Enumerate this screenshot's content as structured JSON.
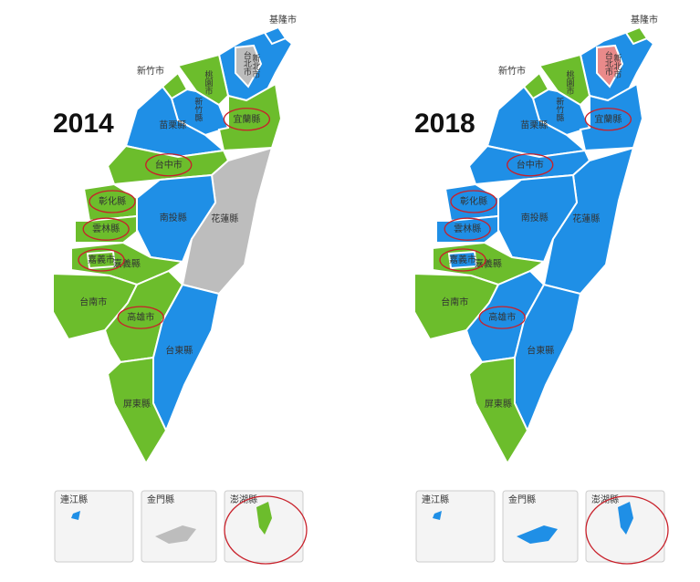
{
  "maps": [
    {
      "year": "2014",
      "counties": [
        {
          "name": "新北市",
          "color": "#1f8fe6",
          "circled": false
        },
        {
          "name": "台北市",
          "color": "#bdbdbd",
          "circled": false
        },
        {
          "name": "基隆市",
          "color": "#1f8fe6",
          "circled": false
        },
        {
          "name": "桃園市",
          "color": "#6cbd2c",
          "circled": false
        },
        {
          "name": "新竹市",
          "color": "#6cbd2c",
          "circled": false
        },
        {
          "name": "新竹縣",
          "color": "#1f8fe6",
          "circled": false
        },
        {
          "name": "宜蘭縣",
          "color": "#6cbd2c",
          "circled": true
        },
        {
          "name": "苗栗縣",
          "color": "#1f8fe6",
          "circled": false
        },
        {
          "name": "台中市",
          "color": "#6cbd2c",
          "circled": true
        },
        {
          "name": "花蓮縣",
          "color": "#bdbdbd",
          "circled": false
        },
        {
          "name": "南投縣",
          "color": "#1f8fe6",
          "circled": false
        },
        {
          "name": "彰化縣",
          "color": "#6cbd2c",
          "circled": true
        },
        {
          "name": "雲林縣",
          "color": "#6cbd2c",
          "circled": true
        },
        {
          "name": "嘉義縣",
          "color": "#6cbd2c",
          "circled": false
        },
        {
          "name": "嘉義市",
          "color": "#6cbd2c",
          "circled": true
        },
        {
          "name": "台南市",
          "color": "#6cbd2c",
          "circled": false
        },
        {
          "name": "高雄市",
          "color": "#6cbd2c",
          "circled": true
        },
        {
          "name": "台東縣",
          "color": "#1f8fe6",
          "circled": false
        },
        {
          "name": "屏東縣",
          "color": "#6cbd2c",
          "circled": false
        }
      ],
      "islands": [
        {
          "name": "連江縣",
          "color": "#1f8fe6",
          "circled": false
        },
        {
          "name": "金門縣",
          "color": "#bdbdbd",
          "circled": false
        },
        {
          "name": "澎湖縣",
          "color": "#6cbd2c",
          "circled": true
        }
      ]
    },
    {
      "year": "2018",
      "counties": [
        {
          "name": "新北市",
          "color": "#1f8fe6",
          "circled": false
        },
        {
          "name": "台北市",
          "color": "#e98a8a",
          "circled": false
        },
        {
          "name": "基隆市",
          "color": "#6cbd2c",
          "circled": false
        },
        {
          "name": "桃園市",
          "color": "#6cbd2c",
          "circled": false
        },
        {
          "name": "新竹市",
          "color": "#6cbd2c",
          "circled": false
        },
        {
          "name": "新竹縣",
          "color": "#1f8fe6",
          "circled": false
        },
        {
          "name": "宜蘭縣",
          "color": "#1f8fe6",
          "circled": true
        },
        {
          "name": "苗栗縣",
          "color": "#1f8fe6",
          "circled": false
        },
        {
          "name": "台中市",
          "color": "#1f8fe6",
          "circled": true
        },
        {
          "name": "花蓮縣",
          "color": "#1f8fe6",
          "circled": false
        },
        {
          "name": "南投縣",
          "color": "#1f8fe6",
          "circled": false
        },
        {
          "name": "彰化縣",
          "color": "#1f8fe6",
          "circled": true
        },
        {
          "name": "雲林縣",
          "color": "#1f8fe6",
          "circled": true
        },
        {
          "name": "嘉義縣",
          "color": "#6cbd2c",
          "circled": false
        },
        {
          "name": "嘉義市",
          "color": "#1f8fe6",
          "circled": true
        },
        {
          "name": "台南市",
          "color": "#6cbd2c",
          "circled": false
        },
        {
          "name": "高雄市",
          "color": "#1f8fe6",
          "circled": true
        },
        {
          "name": "台東縣",
          "color": "#1f8fe6",
          "circled": false
        },
        {
          "name": "屏東縣",
          "color": "#6cbd2c",
          "circled": false
        }
      ],
      "islands": [
        {
          "name": "連江縣",
          "color": "#1f8fe6",
          "circled": false
        },
        {
          "name": "金門縣",
          "color": "#1f8fe6",
          "circled": false
        },
        {
          "name": "澎湖縣",
          "color": "#1f8fe6",
          "circled": true
        }
      ]
    }
  ]
}
